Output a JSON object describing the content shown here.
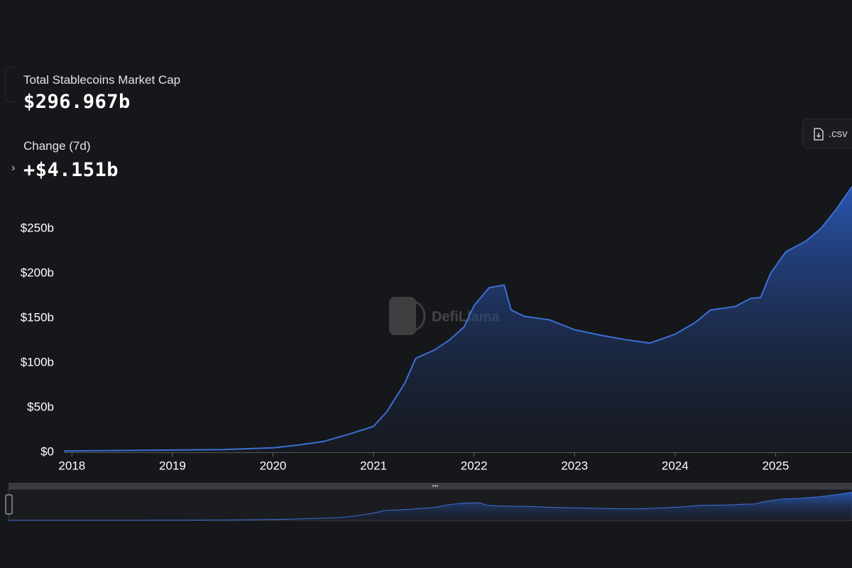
{
  "stats": {
    "market_cap_label": "Total Stablecoins Market Cap",
    "market_cap_value": "$296.967b",
    "change_label": "Change (7d)",
    "change_value": "+$4.151b",
    "csv_button": ".csv",
    "watermark": "DefiLlama"
  },
  "chart_data": {
    "type": "area",
    "color": "#3b6fd4",
    "x": [
      2017.92,
      2019.0,
      2019.5,
      2020.0,
      2020.25,
      2020.5,
      2020.75,
      2021.0,
      2021.13,
      2021.31,
      2021.42,
      2021.6,
      2021.75,
      2021.9,
      2022.0,
      2022.15,
      2022.3,
      2022.37,
      2022.5,
      2022.75,
      2023.0,
      2023.25,
      2023.5,
      2023.75,
      2024.0,
      2024.2,
      2024.35,
      2024.6,
      2024.75,
      2024.85,
      2024.95,
      2025.1,
      2025.3,
      2025.45,
      2025.6,
      2025.76
    ],
    "values": [
      1.4,
      2.5,
      3,
      5,
      8,
      12,
      20,
      29,
      45,
      77,
      105,
      114,
      125,
      140,
      164,
      184,
      187,
      159,
      152,
      148,
      137,
      131,
      126,
      122,
      132,
      145,
      159,
      163,
      172,
      173,
      200,
      224,
      236,
      250,
      271,
      297
    ],
    "xlim": [
      2017.92,
      2025.76
    ],
    "xticks": [
      2018,
      2019,
      2020,
      2021,
      2022,
      2023,
      2024,
      2025
    ],
    "ylim": [
      0,
      300
    ],
    "yticks": [
      {
        "value": 0,
        "label": "$0"
      },
      {
        "value": 50,
        "label": "$50b"
      },
      {
        "value": 100,
        "label": "$100b"
      },
      {
        "value": 150,
        "label": "$150b"
      },
      {
        "value": 200,
        "label": "$200b"
      },
      {
        "value": 250,
        "label": "$250b"
      }
    ]
  }
}
